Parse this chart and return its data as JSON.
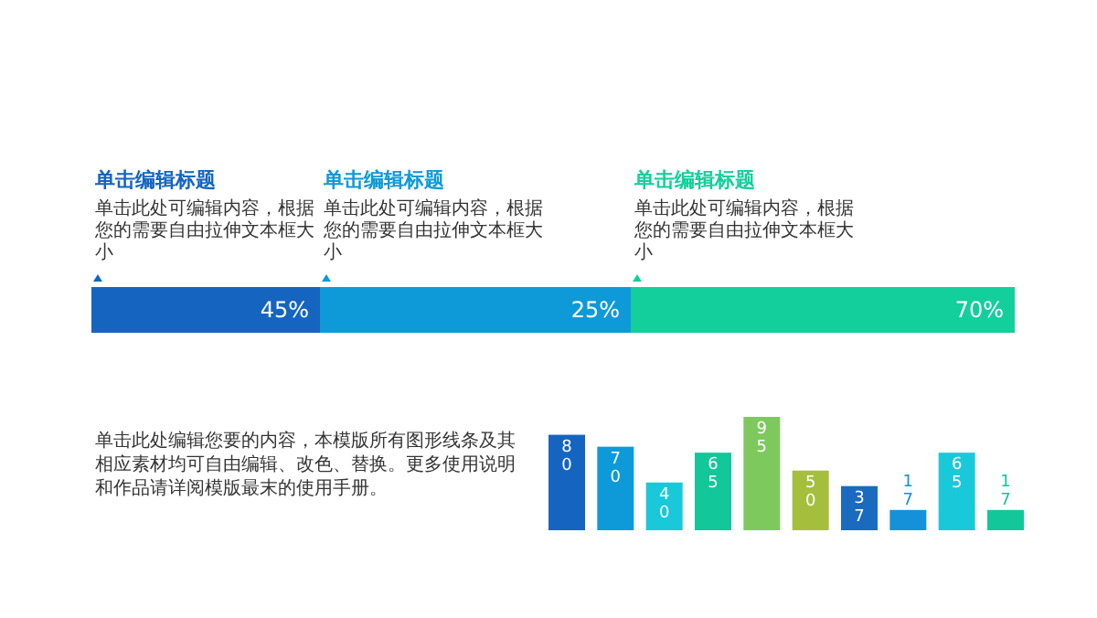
{
  "chart_data": [
    {
      "type": "other",
      "categories": [
        "单击编辑标题",
        "单击编辑标题",
        "单击编辑标题"
      ],
      "values": [
        45,
        25,
        70
      ],
      "value_labels": [
        "45%",
        "25%",
        "70%"
      ],
      "colors": [
        "#1565c0",
        "#0e9ad8",
        "#12cf9c"
      ],
      "annotations": [
        "单击此处可编辑内容，根据您的需要自由拉伸文本框大小",
        "单击此处可编辑内容，根据您的需要自由拉伸文本框大小",
        "单击此处可编辑内容，根据您的需要自由拉伸文本框大小"
      ]
    },
    {
      "type": "bar",
      "categories": [
        null,
        null,
        null,
        null,
        null,
        null,
        null,
        null,
        null,
        null
      ],
      "values": [
        80,
        70,
        40,
        65,
        95,
        50,
        37,
        17,
        65,
        17
      ],
      "data_labels": true,
      "colors": [
        "#1565c0",
        "#0e9ad8",
        "#19c9d9",
        "#12c79a",
        "#7dc95e",
        "#a5bf3c",
        "#1a6bc0",
        "#1591d9",
        "#19c9d9",
        "#12c79a"
      ],
      "annotations": [
        "单击此处编辑您要的内容，本模版所有图形线条及其相应素材均可自由编辑、改色、替换。更多使用说明和作品请详阅模版最末的使用手册。"
      ]
    }
  ]
}
